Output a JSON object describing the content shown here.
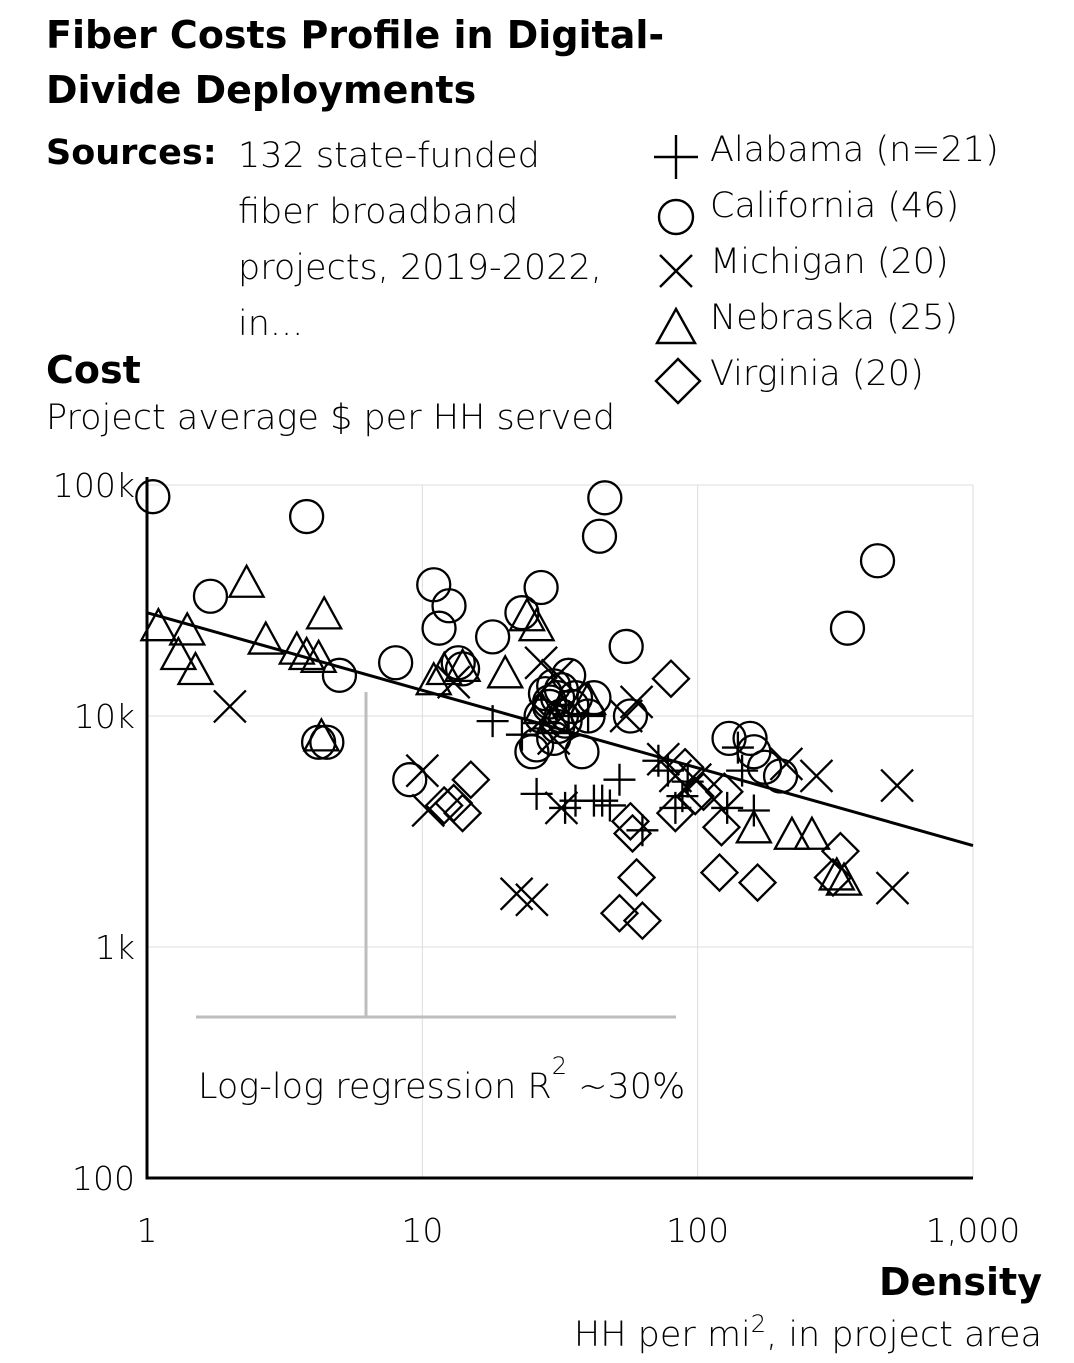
{
  "chart_data": {
    "type": "scatter",
    "title": "Fiber Costs Profile in Digital-Divide Deployments",
    "sources_label": "Sources:",
    "sources_lines": [
      "132 state-funded",
      "fiber broadband",
      "projects, 2019-2022,",
      "in..."
    ],
    "ylabel": "Cost",
    "ylabel_sub": "Project average $ per HH served",
    "xlabel": "Density",
    "xlabel_sub_pre": "HH per mi",
    "xlabel_sub_sup": "2",
    "xlabel_sub_post": ", in project area",
    "x_scale": "log",
    "y_scale": "log",
    "xlim": [
      1,
      1000
    ],
    "ylim": [
      100,
      100000
    ],
    "x_ticks": [
      1,
      10,
      100,
      1000
    ],
    "x_tick_labels": [
      "1",
      "10",
      "100",
      "1,000"
    ],
    "y_ticks": [
      100,
      1000,
      10000,
      100000
    ],
    "y_tick_labels": [
      "100",
      "1k",
      "10k",
      "100k"
    ],
    "grid": true,
    "legend_position": "top-right",
    "annotation": {
      "pre": "Log-log regression R",
      "sup": "2",
      "post": " ~30%"
    },
    "regression": {
      "x": [
        1,
        1000
      ],
      "y": [
        28000,
        2750
      ]
    },
    "series": [
      {
        "name": "Alabama (n=21)",
        "marker": "plus",
        "points": [
          [
            18,
            9500
          ],
          [
            23,
            8300
          ],
          [
            26,
            4600
          ],
          [
            33,
            4000
          ],
          [
            36,
            4300
          ],
          [
            40,
            10000
          ],
          [
            42,
            4300
          ],
          [
            45,
            4300
          ],
          [
            48,
            4100
          ],
          [
            52,
            5300
          ],
          [
            63,
            3200
          ],
          [
            72,
            6400
          ],
          [
            78,
            5800
          ],
          [
            83,
            4000
          ],
          [
            88,
            4500
          ],
          [
            92,
            5200
          ],
          [
            128,
            4000
          ],
          [
            140,
            7300
          ],
          [
            145,
            5800
          ],
          [
            160,
            3900
          ],
          [
            34,
            10000
          ]
        ]
      },
      {
        "name": "California (46)",
        "marker": "circle",
        "points": [
          [
            1.05,
            89000
          ],
          [
            3.8,
            73000
          ],
          [
            1.7,
            33000
          ],
          [
            4.2,
            7700
          ],
          [
            4.5,
            7700
          ],
          [
            5,
            15000
          ],
          [
            8,
            17000
          ],
          [
            9,
            5300
          ],
          [
            11,
            37000
          ],
          [
            11.5,
            24000
          ],
          [
            12.5,
            30000
          ],
          [
            13.5,
            17000
          ],
          [
            18,
            22000
          ],
          [
            23,
            28000
          ],
          [
            26,
            7500
          ],
          [
            27,
            36000
          ],
          [
            28,
            12500
          ],
          [
            29,
            11000
          ],
          [
            30,
            13500
          ],
          [
            31,
            12000
          ],
          [
            32,
            10000
          ],
          [
            33,
            9500
          ],
          [
            34,
            15000
          ],
          [
            36,
            12000
          ],
          [
            38,
            7000
          ],
          [
            40,
            10000
          ],
          [
            42,
            12000
          ],
          [
            44,
            60000
          ],
          [
            46,
            88000
          ],
          [
            55,
            20000
          ],
          [
            57,
            10000
          ],
          [
            130,
            8000
          ],
          [
            155,
            8000
          ],
          [
            175,
            6000
          ],
          [
            200,
            5500
          ],
          [
            350,
            24000
          ],
          [
            450,
            47000
          ],
          [
            25,
            7000
          ],
          [
            30,
            8000
          ],
          [
            14,
            16000
          ],
          [
            32,
            13000
          ],
          [
            35,
            11000
          ],
          [
            27,
            10000
          ],
          [
            160,
            7000
          ],
          [
            31,
            9000
          ],
          [
            29,
            11500
          ]
        ]
      },
      {
        "name": "Michigan (20)",
        "marker": "x",
        "points": [
          [
            2,
            11000
          ],
          [
            10,
            5800
          ],
          [
            10.5,
            3900
          ],
          [
            13,
            14000
          ],
          [
            22,
            1700
          ],
          [
            25,
            1600
          ],
          [
            27,
            17000
          ],
          [
            28,
            10000
          ],
          [
            30,
            8000
          ],
          [
            31,
            15000
          ],
          [
            32,
            4000
          ],
          [
            55,
            10000
          ],
          [
            60,
            11500
          ],
          [
            75,
            6500
          ],
          [
            83,
            5500
          ],
          [
            98,
            5300
          ],
          [
            210,
            6200
          ],
          [
            270,
            5500
          ],
          [
            530,
            5000
          ],
          [
            510,
            1800
          ]
        ]
      },
      {
        "name": "Nebraska (25)",
        "marker": "triangle",
        "points": [
          [
            1.1,
            24000
          ],
          [
            1.4,
            23000
          ],
          [
            1.3,
            18000
          ],
          [
            1.5,
            15500
          ],
          [
            2.3,
            37000
          ],
          [
            2.7,
            21000
          ],
          [
            3.5,
            19000
          ],
          [
            3.8,
            18000
          ],
          [
            4.2,
            17500
          ],
          [
            4.4,
            27000
          ],
          [
            4.3,
            8000
          ],
          [
            11,
            14000
          ],
          [
            12,
            15500
          ],
          [
            14,
            16000
          ],
          [
            20,
            15000
          ],
          [
            24,
            26500
          ],
          [
            26,
            24000
          ],
          [
            27,
            10500
          ],
          [
            30,
            9500
          ],
          [
            40,
            11500
          ],
          [
            160,
            3200
          ],
          [
            220,
            3000
          ],
          [
            260,
            3000
          ],
          [
            320,
            2000
          ],
          [
            340,
            1900
          ]
        ]
      },
      {
        "name": "Virginia (20)",
        "marker": "diamond",
        "points": [
          [
            12,
            4100
          ],
          [
            13,
            4200
          ],
          [
            14,
            3800
          ],
          [
            15,
            5300
          ],
          [
            52,
            1400
          ],
          [
            57,
            3500
          ],
          [
            58,
            3100
          ],
          [
            60,
            2000
          ],
          [
            63,
            1300
          ],
          [
            80,
            14500
          ],
          [
            83,
            3800
          ],
          [
            90,
            6000
          ],
          [
            98,
            4500
          ],
          [
            105,
            4700
          ],
          [
            122,
            3300
          ],
          [
            125,
            4700
          ],
          [
            120,
            2100
          ],
          [
            165,
            1900
          ],
          [
            310,
            2000
          ],
          [
            330,
            2600
          ]
        ]
      }
    ]
  }
}
